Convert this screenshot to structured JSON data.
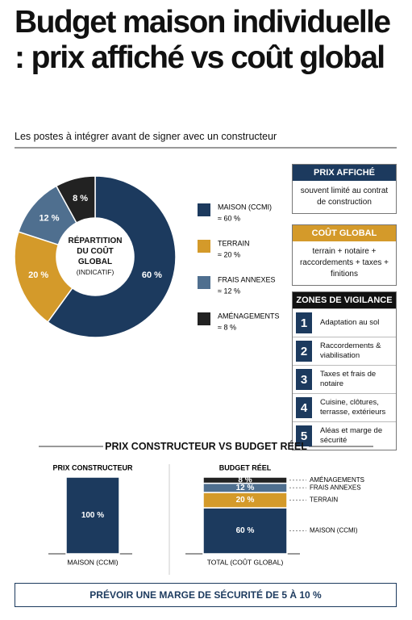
{
  "header": {
    "title": "Budget maison individuelle : prix affiché vs coût global",
    "subtitle": "Les postes à intégrer avant de signer avec un constructeur"
  },
  "chart_data": [
    {
      "type": "pie",
      "center_label": "RÉPARTITION DU COÛT GLOBAL",
      "center_note": "(INDICATIF)",
      "categories": [
        "MAISON (CCMI)",
        "TERRAIN",
        "FRAIS ANNEXES",
        "AMÉNAGEMENTS"
      ],
      "values": [
        60,
        20,
        12,
        8
      ],
      "value_labels": [
        "60 %",
        "20 %",
        "12 %",
        "8 %"
      ],
      "legend_labels": [
        "≈ 60 %",
        "≈ 20 %",
        "≈ 12 %",
        "≈ 8 %"
      ],
      "colors": [
        "#1c3a5e",
        "#d49a2a",
        "#4f6f8f",
        "#222222"
      ]
    },
    {
      "type": "bar",
      "title": "PRIX CONSTRUCTEUR VS BUDGET RÉEL",
      "panel_titles": [
        "PRIX CONSTRUCTEUR",
        "BUDGET RÉEL"
      ],
      "categories": [
        "MAISON (CCMI)",
        "TOTAL (COÛT GLOBAL)"
      ],
      "series": [
        {
          "name": "MAISON (CCMI)",
          "color": "#1c3a5e",
          "values": [
            100,
            60
          ],
          "value_labels": [
            "100 %",
            "60 %"
          ]
        },
        {
          "name": "TERRAIN",
          "color": "#d49a2a",
          "values": [
            null,
            20
          ],
          "value_labels": [
            null,
            "20 %"
          ]
        },
        {
          "name": "FRAIS ANNEXES",
          "color": "#4f6f8f",
          "values": [
            null,
            12
          ],
          "value_labels": [
            null,
            "12 %"
          ]
        },
        {
          "name": "AMÉNAGEMENTS",
          "color": "#222222",
          "values": [
            null,
            8
          ],
          "value_labels": [
            null,
            "8 %"
          ]
        }
      ]
    }
  ],
  "prix_affiche": {
    "title": "PRIX AFFICHÉ",
    "text": "souvent limité au contrat de construction"
  },
  "cout_global": {
    "title": "COÛT GLOBAL",
    "text": "terrain + notaire + raccordements + taxes + finitions"
  },
  "vigilance": {
    "title": "ZONES DE VIGILANCE",
    "items": [
      {
        "number": "1",
        "text": "Adaptation au sol"
      },
      {
        "number": "2",
        "text": "Raccordements & viabilisation"
      },
      {
        "number": "3",
        "text": "Taxes et frais de notaire"
      },
      {
        "number": "4",
        "text": "Cuisine, clôtures, terrasse, extérieurs"
      },
      {
        "number": "5",
        "text": "Aléas et marge de sécurité"
      }
    ]
  },
  "footer": "PRÉVOIR UNE MARGE DE SÉCURITÉ DE 5 À 10 %"
}
